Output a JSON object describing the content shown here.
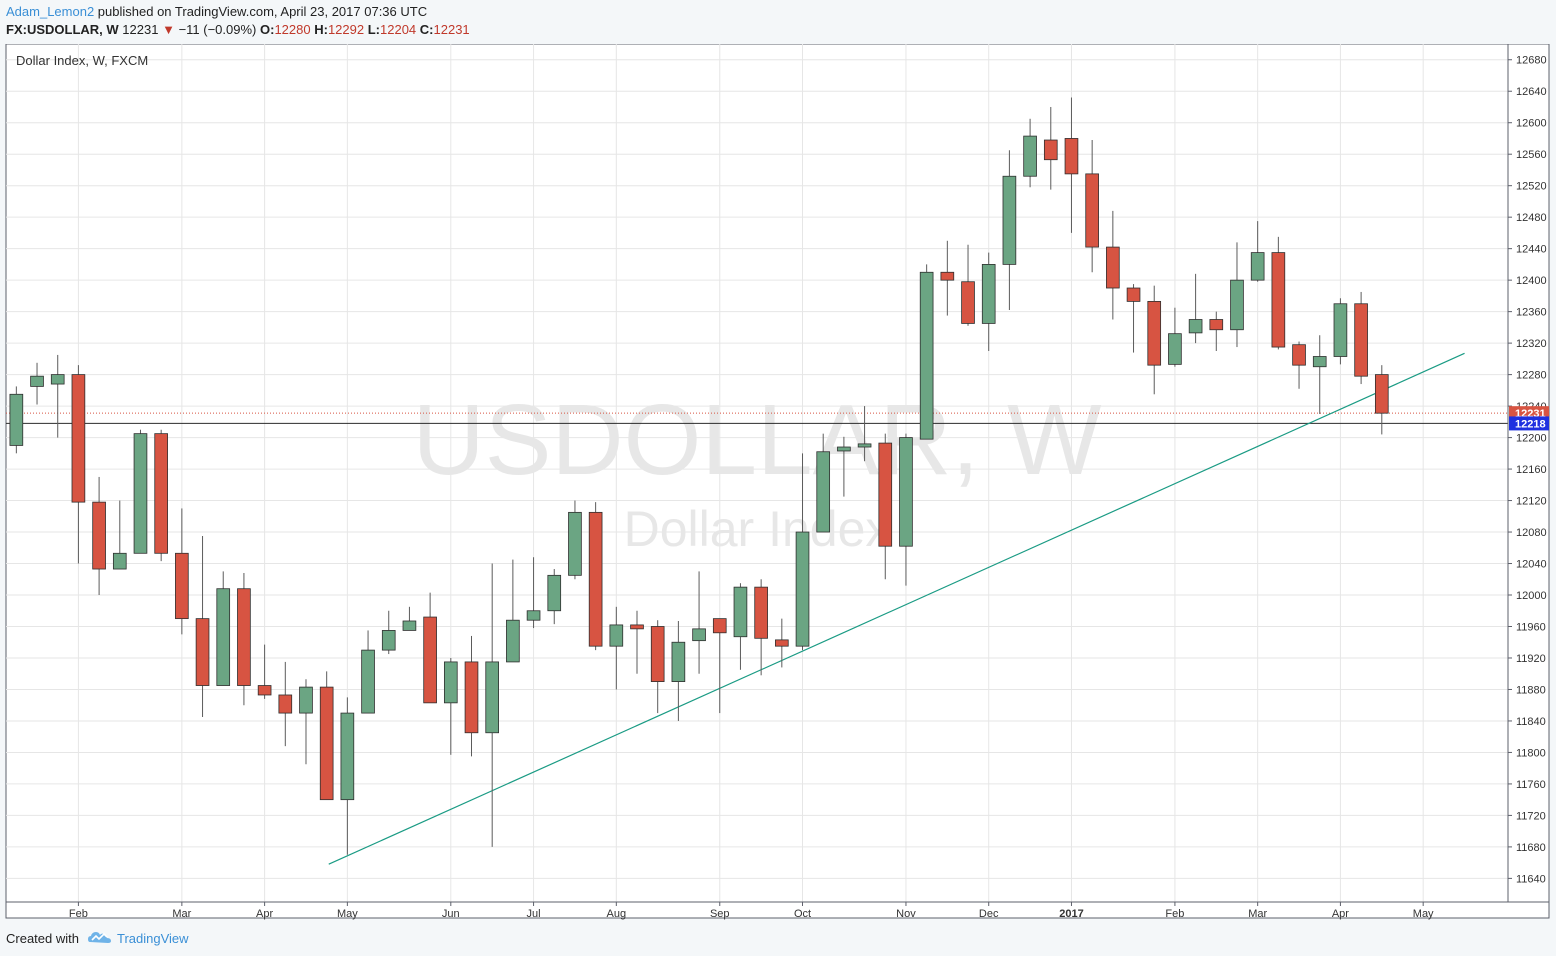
{
  "header": {
    "author": "Adam_Lemon2",
    "published_text": "published on TradingView.com, April 23, 2017 07:36 UTC",
    "symbol": "FX:USDOLLAR, W",
    "last": "12231",
    "change": "−11 (−0.09%)",
    "open_label": "O:",
    "open": "12280",
    "high_label": "H:",
    "high": "12292",
    "low_label": "L:",
    "low": "12204",
    "close_label": "C:",
    "close": "12231"
  },
  "chart_title": "Dollar Index, W, FXCM",
  "watermark": {
    "symbol": "USDOLLAR, W",
    "name": "Dollar Index"
  },
  "footer": {
    "created_with": "Created with",
    "brand": "TradingView"
  },
  "colors": {
    "up": "#6ba583",
    "down": "#d75442",
    "wick": "#5b5b5b",
    "trendline": "#1a9b84",
    "grid": "#e6e6e6",
    "last_price_bg": "#d75442",
    "crosshair_bg": "#1e30e0"
  },
  "chart_data": {
    "type": "candlestick",
    "title": "Dollar Index, W, FXCM",
    "y_range": [
      11610,
      12700
    ],
    "y_ticks": [
      11640,
      11680,
      11720,
      11760,
      11800,
      11840,
      11880,
      11920,
      11960,
      12000,
      12040,
      12080,
      12120,
      12160,
      12200,
      12240,
      12280,
      12320,
      12360,
      12400,
      12440,
      12480,
      12520,
      12560,
      12600,
      12640,
      12680
    ],
    "x_ticks": [
      {
        "label": "Feb",
        "week": 3
      },
      {
        "label": "Mar",
        "week": 8
      },
      {
        "label": "Apr",
        "week": 12
      },
      {
        "label": "May",
        "week": 16
      },
      {
        "label": "Jun",
        "week": 21
      },
      {
        "label": "Jul",
        "week": 25
      },
      {
        "label": "Aug",
        "week": 29
      },
      {
        "label": "Sep",
        "week": 34
      },
      {
        "label": "Oct",
        "week": 38
      },
      {
        "label": "Nov",
        "week": 43
      },
      {
        "label": "Dec",
        "week": 47
      },
      {
        "label": "2017",
        "week": 51,
        "bold": true
      },
      {
        "label": "Feb",
        "week": 56
      },
      {
        "label": "Mar",
        "week": 60
      },
      {
        "label": "Apr",
        "week": 64
      },
      {
        "label": "May",
        "week": 68
      }
    ],
    "weeks_visible": 72.6,
    "candles": [
      {
        "o": 12190,
        "h": 12265,
        "l": 12180,
        "c": 12255
      },
      {
        "o": 12265,
        "h": 12295,
        "l": 12242,
        "c": 12278
      },
      {
        "o": 12268,
        "h": 12305,
        "l": 12200,
        "c": 12280
      },
      {
        "o": 12280,
        "h": 12292,
        "l": 12040,
        "c": 12118
      },
      {
        "o": 12118,
        "h": 12150,
        "l": 12000,
        "c": 12033
      },
      {
        "o": 12033,
        "h": 12120,
        "l": 12033,
        "c": 12053
      },
      {
        "o": 12053,
        "h": 12210,
        "l": 12053,
        "c": 12205
      },
      {
        "o": 12205,
        "h": 12210,
        "l": 12043,
        "c": 12053
      },
      {
        "o": 12053,
        "h": 12110,
        "l": 11950,
        "c": 11970
      },
      {
        "o": 11970,
        "h": 12075,
        "l": 11845,
        "c": 11885
      },
      {
        "o": 11885,
        "h": 12030,
        "l": 11885,
        "c": 12008
      },
      {
        "o": 12008,
        "h": 12028,
        "l": 11860,
        "c": 11885
      },
      {
        "o": 11885,
        "h": 11937,
        "l": 11868,
        "c": 11873
      },
      {
        "o": 11873,
        "h": 11915,
        "l": 11808,
        "c": 11850
      },
      {
        "o": 11850,
        "h": 11893,
        "l": 11785,
        "c": 11883
      },
      {
        "o": 11883,
        "h": 11903,
        "l": 11740,
        "c": 11740
      },
      {
        "o": 11740,
        "h": 11870,
        "l": 11670,
        "c": 11850
      },
      {
        "o": 11850,
        "h": 11955,
        "l": 11850,
        "c": 11930
      },
      {
        "o": 11930,
        "h": 11980,
        "l": 11925,
        "c": 11955
      },
      {
        "o": 11955,
        "h": 11985,
        "l": 11955,
        "c": 11967
      },
      {
        "o": 11972,
        "h": 12003,
        "l": 11863,
        "c": 11863
      },
      {
        "o": 11863,
        "h": 11920,
        "l": 11797,
        "c": 11915
      },
      {
        "o": 11915,
        "h": 11948,
        "l": 11795,
        "c": 11825
      },
      {
        "o": 11825,
        "h": 12040,
        "l": 11680,
        "c": 11915
      },
      {
        "o": 11915,
        "h": 12045,
        "l": 11915,
        "c": 11968
      },
      {
        "o": 11968,
        "h": 12048,
        "l": 11958,
        "c": 11980
      },
      {
        "o": 11980,
        "h": 12033,
        "l": 11963,
        "c": 12025
      },
      {
        "o": 12025,
        "h": 12120,
        "l": 12020,
        "c": 12105
      },
      {
        "o": 12105,
        "h": 12118,
        "l": 11930,
        "c": 11935
      },
      {
        "o": 11935,
        "h": 11985,
        "l": 11880,
        "c": 11962
      },
      {
        "o": 11962,
        "h": 11980,
        "l": 11900,
        "c": 11957
      },
      {
        "o": 11960,
        "h": 11968,
        "l": 11850,
        "c": 11890
      },
      {
        "o": 11890,
        "h": 11967,
        "l": 11840,
        "c": 11940
      },
      {
        "o": 11942,
        "h": 12030,
        "l": 11900,
        "c": 11957
      },
      {
        "o": 11970,
        "h": 11968,
        "l": 11850,
        "c": 11952
      },
      {
        "o": 11947,
        "h": 12015,
        "l": 11905,
        "c": 12010
      },
      {
        "o": 12010,
        "h": 12020,
        "l": 11898,
        "c": 11945
      },
      {
        "o": 11943,
        "h": 11970,
        "l": 11908,
        "c": 11935
      },
      {
        "o": 11935,
        "h": 12180,
        "l": 11930,
        "c": 12080
      },
      {
        "o": 12080,
        "h": 12205,
        "l": 12080,
        "c": 12182
      },
      {
        "o": 12183,
        "h": 12201,
        "l": 12125,
        "c": 12188
      },
      {
        "o": 12188,
        "h": 12240,
        "l": 12170,
        "c": 12192
      },
      {
        "o": 12193,
        "h": 12205,
        "l": 12020,
        "c": 12062
      },
      {
        "o": 12062,
        "h": 12205,
        "l": 12012,
        "c": 12200
      },
      {
        "o": 12198,
        "h": 12420,
        "l": 12198,
        "c": 12410
      },
      {
        "o": 12410,
        "h": 12450,
        "l": 12355,
        "c": 12400
      },
      {
        "o": 12398,
        "h": 12445,
        "l": 12342,
        "c": 12345
      },
      {
        "o": 12345,
        "h": 12435,
        "l": 12310,
        "c": 12420
      },
      {
        "o": 12420,
        "h": 12565,
        "l": 12362,
        "c": 12532
      },
      {
        "o": 12532,
        "h": 12605,
        "l": 12518,
        "c": 12583
      },
      {
        "o": 12578,
        "h": 12620,
        "l": 12515,
        "c": 12553
      },
      {
        "o": 12580,
        "h": 12632,
        "l": 12460,
        "c": 12535
      },
      {
        "o": 12535,
        "h": 12578,
        "l": 12410,
        "c": 12442
      },
      {
        "o": 12442,
        "h": 12488,
        "l": 12350,
        "c": 12390
      },
      {
        "o": 12390,
        "h": 12395,
        "l": 12308,
        "c": 12373
      },
      {
        "o": 12373,
        "h": 12393,
        "l": 12255,
        "c": 12292
      },
      {
        "o": 12293,
        "h": 12365,
        "l": 12290,
        "c": 12332
      },
      {
        "o": 12333,
        "h": 12408,
        "l": 12320,
        "c": 12350
      },
      {
        "o": 12350,
        "h": 12360,
        "l": 12310,
        "c": 12337
      },
      {
        "o": 12337,
        "h": 12448,
        "l": 12315,
        "c": 12400
      },
      {
        "o": 12400,
        "h": 12475,
        "l": 12398,
        "c": 12435
      },
      {
        "o": 12435,
        "h": 12455,
        "l": 12312,
        "c": 12315
      },
      {
        "o": 12318,
        "h": 12322,
        "l": 12262,
        "c": 12292
      },
      {
        "o": 12290,
        "h": 12330,
        "l": 12230,
        "c": 12303
      },
      {
        "o": 12303,
        "h": 12377,
        "l": 12293,
        "c": 12370
      },
      {
        "o": 12370,
        "h": 12385,
        "l": 12268,
        "c": 12278
      },
      {
        "o": 12280,
        "h": 12292,
        "l": 12204,
        "c": 12231
      }
    ],
    "trendline": {
      "from": {
        "week": 15.1,
        "price": 11658
      },
      "to": {
        "week": 70.0,
        "price": 12307
      }
    },
    "last_price_line": 12231,
    "horizontal_line": 12218,
    "price_labels": [
      {
        "value": 12231,
        "text": "12231",
        "color": "#d75442"
      },
      {
        "value": 12218,
        "text": "12218",
        "color": "#1e30e0"
      }
    ]
  }
}
